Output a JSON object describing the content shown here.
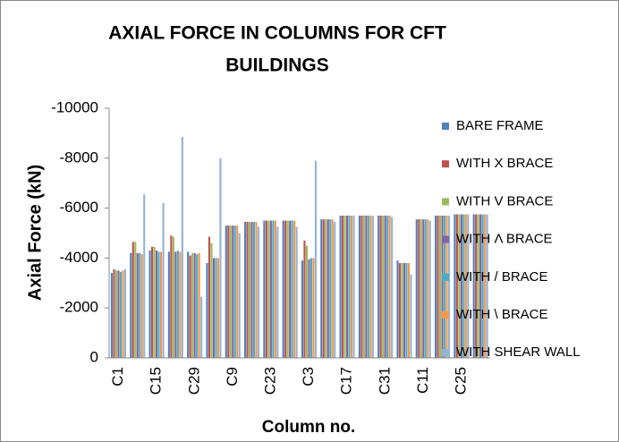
{
  "chart_data": {
    "type": "bar",
    "title": [
      "AXIAL FORCE IN COLUMNS FOR CFT",
      "BUILDINGS"
    ],
    "x_label": "Column no.",
    "y_label": "Axial Force (kN)",
    "categories": [
      "C1",
      null,
      "C15",
      null,
      "C29",
      null,
      "C9",
      null,
      "C23",
      null,
      "C3",
      null,
      "C17",
      null,
      "C31",
      null,
      "C11",
      null,
      "C25",
      null
    ],
    "series": [
      {
        "name": "BARE FRAME",
        "color": "#4F81BD",
        "values": [
          -3400,
          -4200,
          -4300,
          -4250,
          -4250,
          -3800,
          -5300,
          -5450,
          -5500,
          -5500,
          -3900,
          -5550,
          -5700,
          -5700,
          -5700,
          -3900,
          -5550,
          -5700,
          -5750,
          -5750
        ]
      },
      {
        "name": "WITH X BRACE",
        "color": "#C0504D",
        "values": [
          -3550,
          -4650,
          -4450,
          -4900,
          -4100,
          -4850,
          -5300,
          -5450,
          -5500,
          -5500,
          -4700,
          -5550,
          -5700,
          -5700,
          -5700,
          -3800,
          -5550,
          -5700,
          -5750,
          -5750
        ]
      },
      {
        "name": "WITH V BRACE",
        "color": "#9BBB59",
        "values": [
          -3500,
          -4650,
          -4450,
          -4850,
          -4200,
          -4600,
          -5300,
          -5450,
          -5500,
          -5500,
          -4500,
          -5550,
          -5700,
          -5700,
          -5700,
          -3800,
          -5550,
          -5700,
          -5750,
          -5750
        ]
      },
      {
        "name": "WITH Λ BRACE",
        "color": "#8064A2",
        "values": [
          -3500,
          -4200,
          -4300,
          -4250,
          -4200,
          -4000,
          -5300,
          -5450,
          -5500,
          -5500,
          -3950,
          -5550,
          -5700,
          -5700,
          -5700,
          -3800,
          -5550,
          -5700,
          -5750,
          -5750
        ]
      },
      {
        "name": "WITH / BRACE",
        "color": "#4BACC6",
        "values": [
          -3450,
          -4200,
          -4250,
          -4300,
          -4150,
          -4000,
          -5300,
          -5450,
          -5500,
          -5500,
          -4000,
          -5550,
          -5700,
          -5700,
          -5700,
          -3800,
          -5550,
          -5700,
          -5750,
          -5750
        ]
      },
      {
        "name": "WITH \\ BRACE",
        "color": "#F79646",
        "values": [
          -3500,
          -4150,
          -4250,
          -4250,
          -4200,
          -4000,
          -5300,
          -5450,
          -5500,
          -5500,
          -4000,
          -5550,
          -5700,
          -5700,
          -5700,
          -3800,
          -5550,
          -5700,
          -5750,
          -5750
        ]
      },
      {
        "name": "WITH SHEAR WALL",
        "color": "#95B3D7",
        "values": [
          -3550,
          -6550,
          -6200,
          -8850,
          -2450,
          -8000,
          -5000,
          -5250,
          -5250,
          -5250,
          -7900,
          -5450,
          -5700,
          -5700,
          -5650,
          -3350,
          -5500,
          -5700,
          -5750,
          -5750
        ]
      }
    ],
    "ylim": [
      0,
      -10000
    ],
    "yticks": [
      0,
      -2000,
      -4000,
      -6000,
      -8000,
      -10000
    ],
    "grid": false,
    "legend": "right"
  }
}
